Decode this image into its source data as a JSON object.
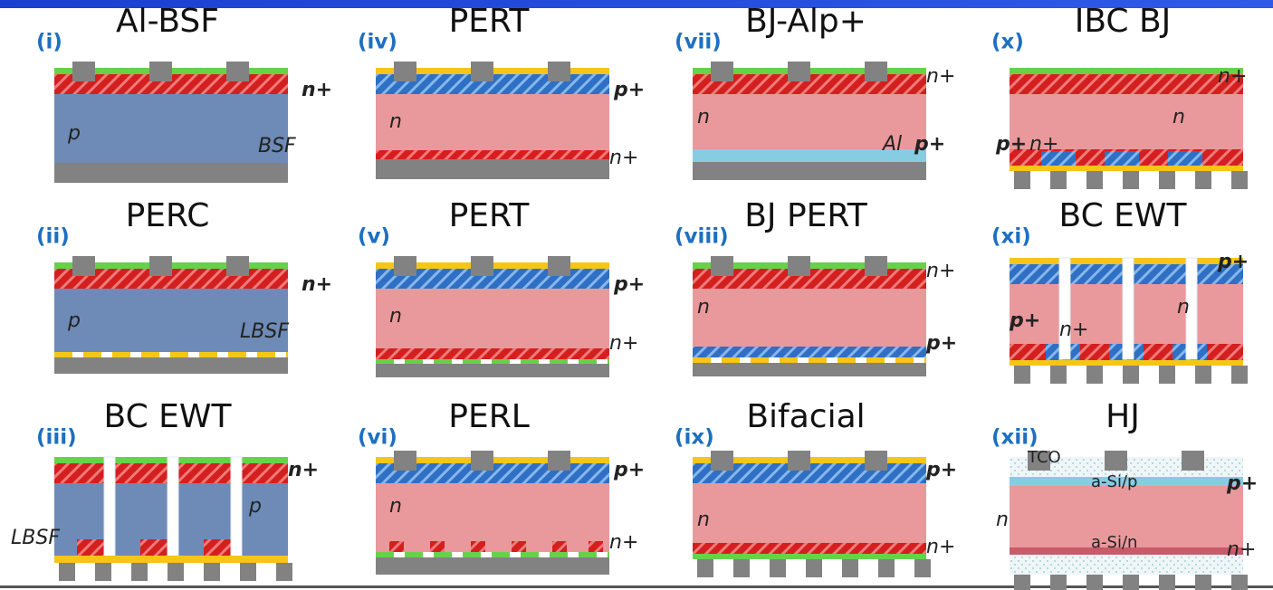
{
  "panels": [
    {
      "numeral": "(i)",
      "title": "Al-BSF",
      "labels": [
        "n+",
        "p",
        "BSF"
      ]
    },
    {
      "numeral": "(iv)",
      "title": "PERT",
      "labels": [
        "p+",
        "n",
        "n+"
      ]
    },
    {
      "numeral": "(vii)",
      "title": "BJ-Alp+",
      "labels": [
        "n+",
        "n",
        "Al",
        "p+"
      ]
    },
    {
      "numeral": "(x)",
      "title": "IBC BJ",
      "labels": [
        "n+",
        "n",
        "p+",
        "n+"
      ]
    },
    {
      "numeral": "(ii)",
      "title": "PERC",
      "labels": [
        "n+",
        "p",
        "LBSF"
      ]
    },
    {
      "numeral": "(v)",
      "title": "PERT",
      "labels": [
        "p+",
        "n",
        "n+"
      ]
    },
    {
      "numeral": "(viii)",
      "title": "BJ PERT",
      "labels": [
        "n+",
        "n",
        "p+"
      ]
    },
    {
      "numeral": "(xi)",
      "title": "BC EWT",
      "labels": [
        "p+",
        "p+",
        "n+",
        "n"
      ]
    },
    {
      "numeral": "(iii)",
      "title": "BC EWT",
      "labels": [
        "n+",
        "p",
        "LBSF"
      ]
    },
    {
      "numeral": "(vi)",
      "title": "PERL",
      "labels": [
        "p+",
        "n",
        "n+"
      ]
    },
    {
      "numeral": "(ix)",
      "title": "Bifacial",
      "labels": [
        "p+",
        "n",
        "n+"
      ]
    },
    {
      "numeral": "(xii)",
      "title": "HJ",
      "labels": [
        "TCO",
        "a-Si/p",
        "p+",
        "n",
        "a-Si/n",
        "n+"
      ]
    }
  ]
}
